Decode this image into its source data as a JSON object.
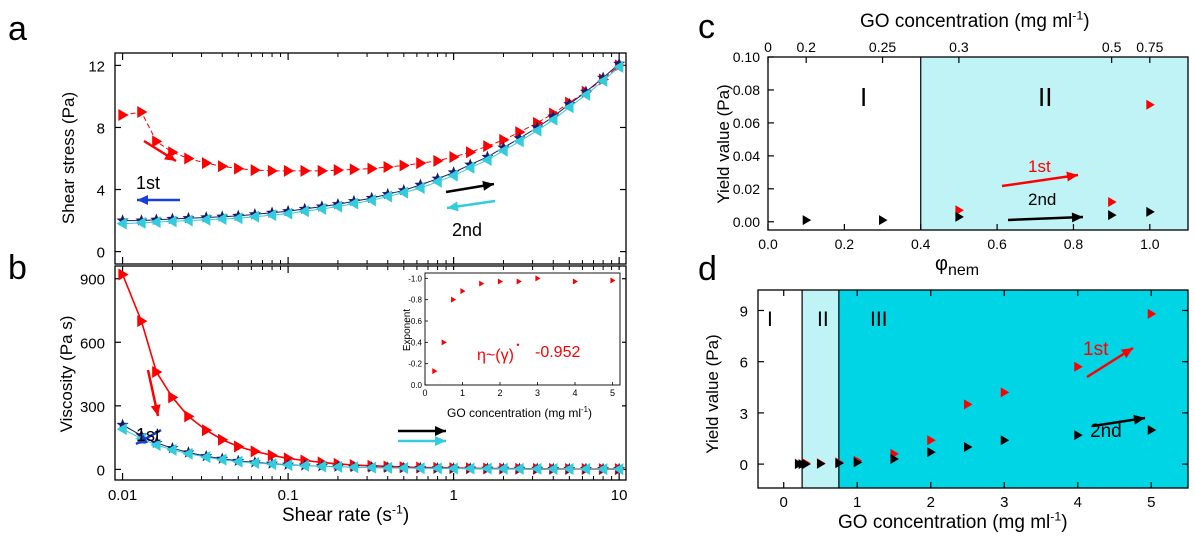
{
  "panels": {
    "a": {
      "label": "a"
    },
    "b": {
      "label": "b"
    },
    "c": {
      "label": "c"
    },
    "d": {
      "label": "d"
    }
  },
  "colors": {
    "red": "#ff0000",
    "navy": "#1a1a6e",
    "cyan": "#33ccdd",
    "blue": "#1a3fd6",
    "black": "#000000",
    "shade_light": "#bff3f6",
    "shade_dark": "#00d5e6"
  },
  "chart_data": [
    {
      "id": "a",
      "type": "line",
      "xscale": "log",
      "xlim": [
        0.009,
        11
      ],
      "ylim": [
        -0.8,
        12.8
      ],
      "yticks": [
        0,
        4,
        8,
        12
      ],
      "ylabel": "Shear stress (Pa)",
      "series": [
        {
          "color": "red",
          "marker": "triangle-right",
          "x": [
            0.01,
            0.013,
            0.016,
            0.02,
            0.025,
            0.032,
            0.04,
            0.05,
            0.063,
            0.08,
            0.1,
            0.126,
            0.16,
            0.2,
            0.25,
            0.32,
            0.4,
            0.5,
            0.63,
            0.8,
            1.0,
            1.26,
            1.6,
            2.0,
            2.5,
            3.2,
            4.0,
            5.0,
            6.3,
            8.0,
            10.0
          ],
          "y": [
            8.8,
            9.0,
            7.1,
            6.4,
            6.0,
            5.7,
            5.5,
            5.35,
            5.25,
            5.2,
            5.2,
            5.2,
            5.2,
            5.25,
            5.3,
            5.35,
            5.45,
            5.55,
            5.7,
            5.85,
            6.1,
            6.4,
            6.8,
            7.2,
            7.7,
            8.3,
            8.9,
            9.6,
            10.3,
            11.1,
            12.0
          ]
        },
        {
          "color": "navy",
          "marker": "star",
          "x": [
            0.01,
            0.013,
            0.016,
            0.02,
            0.025,
            0.032,
            0.04,
            0.05,
            0.063,
            0.08,
            0.1,
            0.126,
            0.16,
            0.2,
            0.25,
            0.32,
            0.4,
            0.5,
            0.63,
            0.8,
            1.0,
            1.26,
            1.6,
            2.0,
            2.5,
            3.2,
            4.0,
            5.0,
            6.3,
            8.0,
            10.0
          ],
          "y": [
            2.0,
            2.0,
            2.05,
            2.1,
            2.15,
            2.2,
            2.25,
            2.3,
            2.4,
            2.5,
            2.6,
            2.75,
            2.9,
            3.05,
            3.25,
            3.45,
            3.7,
            3.95,
            4.3,
            4.7,
            5.1,
            5.6,
            6.1,
            6.7,
            7.3,
            8.0,
            8.7,
            9.5,
            10.3,
            11.2,
            12.1
          ]
        },
        {
          "color": "cyan",
          "marker": "triangle-left",
          "x": [
            0.01,
            0.013,
            0.016,
            0.02,
            0.025,
            0.032,
            0.04,
            0.05,
            0.063,
            0.08,
            0.1,
            0.126,
            0.16,
            0.2,
            0.25,
            0.32,
            0.4,
            0.5,
            0.63,
            0.8,
            1.0,
            1.26,
            1.6,
            2.0,
            2.5,
            3.2,
            4.0,
            5.0,
            6.3,
            8.0,
            10.0
          ],
          "y": [
            1.8,
            1.85,
            1.9,
            1.95,
            2.0,
            2.05,
            2.1,
            2.15,
            2.25,
            2.35,
            2.45,
            2.6,
            2.75,
            2.9,
            3.1,
            3.3,
            3.55,
            3.8,
            4.1,
            4.5,
            4.9,
            5.4,
            5.9,
            6.5,
            7.1,
            7.8,
            8.5,
            9.3,
            10.1,
            11.0,
            11.9
          ]
        }
      ],
      "annotations": [
        {
          "text": "1st",
          "color": "black"
        },
        {
          "text": "2nd",
          "color": "black"
        }
      ]
    },
    {
      "id": "b",
      "type": "line",
      "xscale": "log",
      "xlim": [
        0.009,
        11
      ],
      "ylim": [
        -50,
        960
      ],
      "yticks": [
        0,
        300,
        600,
        900
      ],
      "ylabel": "Viscosity (Pa s)",
      "xlabel": "Shear rate (s",
      "xlabel_sup": "-1",
      "xlabel_end": ")",
      "xticks": [
        0.01,
        0.1,
        1,
        10
      ],
      "xticklabels": [
        "0.01",
        "0.1",
        "1",
        "10"
      ],
      "series": [
        {
          "color": "red",
          "marker": "triangle-right",
          "x": [
            0.01,
            0.013,
            0.016,
            0.02,
            0.025,
            0.032,
            0.04,
            0.05,
            0.063,
            0.08,
            0.1,
            0.126,
            0.16,
            0.2,
            0.25,
            0.32,
            0.4,
            0.5,
            0.63,
            0.8,
            1.0,
            1.26,
            1.6,
            2.0,
            2.5,
            3.2,
            4.0,
            5.0,
            6.3,
            8.0,
            10.0
          ],
          "y": [
            920,
            700,
            460,
            340,
            250,
            185,
            140,
            108,
            85,
            66,
            52,
            42,
            33,
            26,
            21,
            17,
            14,
            11,
            9,
            7.5,
            6.3,
            5.2,
            4.4,
            3.7,
            3.1,
            2.6,
            2.3,
            2.0,
            1.7,
            1.5,
            1.3
          ]
        },
        {
          "color": "navy",
          "marker": "star",
          "x": [
            0.01,
            0.013,
            0.016,
            0.02,
            0.025,
            0.032,
            0.04,
            0.05,
            0.063,
            0.08,
            0.1,
            0.126,
            0.16,
            0.2,
            0.25,
            0.32,
            0.4,
            0.5,
            0.63,
            0.8,
            1.0,
            1.26,
            1.6,
            2.0,
            2.5,
            3.2,
            4.0,
            5.0,
            6.3,
            8.0,
            10.0
          ],
          "y": [
            210,
            160,
            125,
            100,
            80,
            62,
            50,
            40,
            33,
            27,
            22,
            18,
            15,
            12.5,
            10.5,
            9,
            7.8,
            6.8,
            6,
            5.2,
            4.5,
            4,
            3.6,
            3.2,
            2.8,
            2.5,
            2.3,
            2.1,
            1.9,
            1.7,
            1.5
          ]
        },
        {
          "color": "cyan",
          "marker": "triangle-left",
          "x": [
            0.01,
            0.013,
            0.016,
            0.02,
            0.025,
            0.032,
            0.04,
            0.05,
            0.063,
            0.08,
            0.1,
            0.126,
            0.16,
            0.2,
            0.25,
            0.32,
            0.4,
            0.5,
            0.63,
            0.8,
            1.0,
            1.26,
            1.6,
            2.0,
            2.5,
            3.2,
            4.0,
            5.0,
            6.3,
            8.0,
            10.0
          ],
          "y": [
            190,
            145,
            115,
            92,
            74,
            58,
            46,
            37,
            30,
            25,
            20.5,
            17,
            14,
            11.8,
            10,
            8.5,
            7.4,
            6.5,
            5.7,
            5,
            4.3,
            3.8,
            3.4,
            3.0,
            2.7,
            2.4,
            2.2,
            2.0,
            1.8,
            1.6,
            1.4
          ]
        }
      ],
      "annotations": [
        {
          "text": "1st",
          "color": "black"
        },
        {
          "text": "2nd",
          "color": "black"
        }
      ],
      "inset": {
        "xlabel": "GO concentration (mg ml",
        "xlabel_sup": "-1",
        "xlabel_end": ")",
        "ylabel": "Exponent",
        "xlim": [
          0,
          5.2
        ],
        "ylim": [
          0,
          -1.05
        ],
        "xticks": [
          0,
          1,
          2,
          3,
          4,
          5
        ],
        "yticks": [
          0.0,
          -0.2,
          -0.4,
          -0.6,
          -0.8,
          -1.0
        ],
        "yticklabels": [
          "0.0",
          "-0.2",
          "-0.4",
          "-0.6",
          "-0.8",
          "-1.0"
        ],
        "x": [
          0.25,
          0.5,
          0.75,
          1.0,
          1.5,
          2.0,
          2.5,
          3.0,
          4.0,
          5.0
        ],
        "y": [
          -0.13,
          -0.4,
          -0.8,
          -0.88,
          -0.95,
          -0.97,
          -0.97,
          -1.0,
          -0.97,
          -0.98
        ],
        "formula_prefix": "η~(",
        "formula_mid": "γ",
        "formula_dot": "•",
        "formula_close": ")",
        "formula_exp": "-0.952"
      }
    },
    {
      "id": "c",
      "type": "scatter",
      "xlim": [
        0.0,
        1.1
      ],
      "ylim": [
        -0.005,
        0.1
      ],
      "xticks": [
        0.0,
        0.2,
        0.4,
        0.6,
        0.8,
        1.0
      ],
      "xticklabels": [
        "0.0",
        "0.2",
        "0.4",
        "0.6",
        "0.8",
        "1.0"
      ],
      "yticks": [
        0.0,
        0.02,
        0.04,
        0.06,
        0.08,
        0.1
      ],
      "yticklabels": [
        "0.00",
        "0.02",
        "0.04",
        "0.06",
        "0.08",
        "0.10"
      ],
      "xlabel": "φ",
      "xlabel_sub": "nem",
      "ylabel": "Yield value (Pa)",
      "top_axis": {
        "label": "GO concentration (mg ml",
        "label_sup": "-1",
        "label_end": ")",
        "ticks": [
          0.0,
          0.1,
          0.3,
          0.5,
          0.9,
          1.0
        ],
        "ticklabels": [
          "0",
          "0.2",
          "0.25",
          "0.3",
          "0.5",
          "0.75"
        ]
      },
      "regions": [
        {
          "label": "I",
          "x0": 0.0,
          "x1": 0.4,
          "color": "white"
        },
        {
          "label": "II",
          "x0": 0.4,
          "x1": 1.1,
          "color": "shade_light"
        }
      ],
      "series": [
        {
          "color": "red",
          "x": [
            0.5,
            0.9,
            1.0
          ],
          "y": [
            0.007,
            0.012,
            0.071
          ]
        },
        {
          "color": "black",
          "x": [
            0.1,
            0.3,
            0.5,
            0.9,
            1.0
          ],
          "y": [
            0.001,
            0.001,
            0.003,
            0.004,
            0.006
          ]
        }
      ],
      "annotations": [
        {
          "text": "1st",
          "color": "red"
        },
        {
          "text": "2nd",
          "color": "black"
        }
      ]
    },
    {
      "id": "d",
      "type": "scatter",
      "xlim": [
        -0.35,
        5.5
      ],
      "ylim": [
        -1.4,
        10.2
      ],
      "xticks": [
        0,
        1,
        2,
        3,
        4,
        5
      ],
      "xticklabels": [
        "0",
        "1",
        "2",
        "3",
        "4",
        "5"
      ],
      "yticks": [
        0,
        3,
        6,
        9
      ],
      "yticklabels": [
        "0",
        "3",
        "6",
        "9"
      ],
      "xlabel": "GO concentration (mg ml",
      "xlabel_sup": "-1",
      "xlabel_end": ")",
      "ylabel": "Yield value (Pa)",
      "regions": [
        {
          "label": "I",
          "x0": -0.35,
          "x1": 0.25,
          "color": "white"
        },
        {
          "label": "II",
          "x0": 0.25,
          "x1": 0.75,
          "color": "shade_light"
        },
        {
          "label": "III",
          "x0": 0.75,
          "x1": 5.5,
          "color": "shade_dark"
        }
      ],
      "series": [
        {
          "color": "red",
          "x": [
            0.2,
            0.3,
            0.5,
            0.75,
            1.0,
            1.5,
            2.0,
            2.5,
            3.0,
            4.0,
            5.0
          ],
          "y": [
            0.02,
            0.05,
            0.05,
            0.1,
            0.2,
            0.6,
            1.4,
            3.5,
            4.2,
            5.7,
            8.8
          ]
        },
        {
          "color": "black",
          "x": [
            0.2,
            0.25,
            0.3,
            0.5,
            0.75,
            1.0,
            1.5,
            2.0,
            2.5,
            3.0,
            4.0,
            5.0
          ],
          "y": [
            0.0,
            0.0,
            0.0,
            0.02,
            0.05,
            0.1,
            0.3,
            0.7,
            1.0,
            1.4,
            1.7,
            2.0
          ]
        }
      ],
      "annotations": [
        {
          "text": "1st",
          "color": "red"
        },
        {
          "text": "2nd",
          "color": "black"
        }
      ]
    }
  ]
}
